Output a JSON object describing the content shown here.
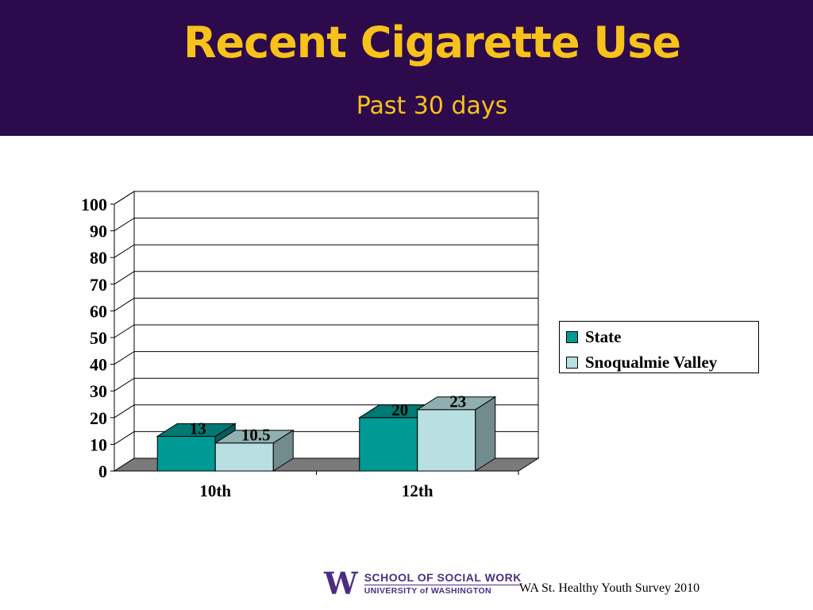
{
  "slide": {
    "title": "Recent Cigarette Use",
    "subtitle": "Past 30 days",
    "source": "WA St. Healthy Youth Survey 2010",
    "logo": {
      "line1": "SCHOOL OF SOCIAL WORK",
      "line2": "UNIVERSITY of WASHINGTON",
      "mark": "W"
    }
  },
  "colors": {
    "banner": "#2d0a4b",
    "title": "#f7c21a",
    "state": "#009a94",
    "snoqualmie": "#b8e0e2",
    "floor": "#7a7a7a",
    "logo": "#4b2e83"
  },
  "chart_data": {
    "type": "bar",
    "categories": [
      "10th",
      "12th"
    ],
    "series": [
      {
        "name": "State",
        "values": [
          13,
          20
        ]
      },
      {
        "name": "Snoqualmie Valley",
        "values": [
          10.5,
          23
        ]
      }
    ],
    "data_labels": [
      [
        "13",
        "10.5"
      ],
      [
        "20",
        "23"
      ]
    ],
    "yticks": [
      "0",
      "10",
      "20",
      "30",
      "40",
      "50",
      "60",
      "70",
      "80",
      "90",
      "100"
    ],
    "ylim": [
      0,
      100
    ],
    "grid": true,
    "legend": "right"
  }
}
